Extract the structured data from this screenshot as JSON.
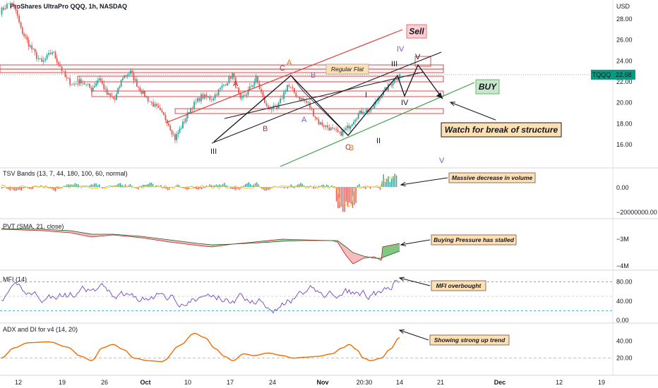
{
  "header": {
    "symbol_title": "ProShares UltraPro QQQ, 1h, NASDAQ",
    "currency": "USD"
  },
  "colors": {
    "up": "#26a69a",
    "down": "#ef5350",
    "channel_upper": "#e53935",
    "channel_lower": "#43a047",
    "zone": "#c62828",
    "mfi_line": "#7e57c2",
    "adx_line": "#ef6c00",
    "price_badge": "#089981",
    "note_bg": "#ffe0b2",
    "buy_bg": "#c8e6c9",
    "sell_bg": "#ffcdd2",
    "wave_red": "#c62828",
    "wave_purple": "#7e57c2",
    "wave_black": "#131722"
  },
  "chart_data": [
    {
      "type": "candlestick",
      "panel": "price",
      "title": "ProShares UltraPro QQQ, 1h, NASDAQ",
      "ylabel": "USD",
      "y_ticks": [
        16.0,
        18.0,
        20.0,
        22.0,
        24.0,
        26.0,
        28.0
      ],
      "ylim": [
        14.2,
        29.8
      ],
      "last_price": 22.68,
      "last_price_label": "TQQQ",
      "x_ticks": [
        "12",
        "19",
        "26",
        "Oct",
        "10",
        "17",
        "24",
        "Nov",
        "20:30",
        "14",
        "21",
        "Dec",
        "12",
        "19"
      ],
      "key_points": [
        {
          "x": 0,
          "y": 28.7
        },
        {
          "x": 0.04,
          "y": 29.6
        },
        {
          "x": 0.06,
          "y": 28.8
        },
        {
          "x": 0.08,
          "y": 27.0
        },
        {
          "x": 0.11,
          "y": 25.6
        },
        {
          "x": 0.14,
          "y": 24.4
        },
        {
          "x": 0.16,
          "y": 23.8
        },
        {
          "x": 0.2,
          "y": 24.9
        },
        {
          "x": 0.23,
          "y": 23.5
        },
        {
          "x": 0.25,
          "y": 22.4
        },
        {
          "x": 0.28,
          "y": 21.7
        },
        {
          "x": 0.31,
          "y": 22.1
        },
        {
          "x": 0.35,
          "y": 21.3
        },
        {
          "x": 0.38,
          "y": 22.4
        },
        {
          "x": 0.41,
          "y": 20.8
        },
        {
          "x": 0.44,
          "y": 20.3
        },
        {
          "x": 0.47,
          "y": 22.5
        },
        {
          "x": 0.5,
          "y": 22.9
        },
        {
          "x": 0.53,
          "y": 21.5
        },
        {
          "x": 0.56,
          "y": 20.5
        },
        {
          "x": 0.6,
          "y": 19.5
        },
        {
          "x": 0.64,
          "y": 18.3
        },
        {
          "x": 0.67,
          "y": 16.6
        },
        {
          "x": 0.7,
          "y": 18.0
        },
        {
          "x": 0.73,
          "y": 19.5
        },
        {
          "x": 0.77,
          "y": 20.6
        },
        {
          "x": 0.81,
          "y": 20.4
        },
        {
          "x": 0.85,
          "y": 21.5
        },
        {
          "x": 0.89,
          "y": 22.7
        },
        {
          "x": 0.92,
          "y": 20.2
        },
        {
          "x": 0.95,
          "y": 21.1
        },
        {
          "x": 0.98,
          "y": 22.3
        },
        {
          "x": 1.02,
          "y": 19.6
        },
        {
          "x": 1.06,
          "y": 19.4
        },
        {
          "x": 1.1,
          "y": 21.7
        },
        {
          "x": 1.14,
          "y": 20.6
        },
        {
          "x": 1.18,
          "y": 19.9
        },
        {
          "x": 1.22,
          "y": 18.1
        },
        {
          "x": 1.26,
          "y": 17.6
        },
        {
          "x": 1.3,
          "y": 17.0
        },
        {
          "x": 1.33,
          "y": 17.6
        },
        {
          "x": 1.36,
          "y": 18.6
        },
        {
          "x": 1.39,
          "y": 19.3
        },
        {
          "x": 1.42,
          "y": 19.2
        },
        {
          "x": 1.45,
          "y": 20.5
        },
        {
          "x": 1.48,
          "y": 21.4
        },
        {
          "x": 1.51,
          "y": 22.2
        },
        {
          "x": 1.53,
          "y": 22.7
        }
      ]
    },
    {
      "type": "bar",
      "panel": "indicator",
      "title": "TSV Bands (13, 7, 44, 180, 100, 60, normal)",
      "y_ticks": [
        "0.00",
        "−20000000.00"
      ]
    },
    {
      "type": "area",
      "panel": "indicator",
      "title": "PVT (SMA, 21, close)",
      "y_ticks": [
        "−3M",
        "−4M"
      ]
    },
    {
      "type": "line",
      "panel": "indicator",
      "title": "MFI (14)",
      "y_ticks": [
        "80.00",
        "40.00",
        "0.00"
      ],
      "ylim": [
        0,
        100
      ],
      "bands": [
        20,
        50,
        80
      ]
    },
    {
      "type": "line",
      "panel": "indicator",
      "title": "ADX and DI for v4 (14, 20)",
      "y_ticks": [
        "40.00",
        "20.00"
      ],
      "ylim": [
        0,
        60
      ],
      "threshold": 20
    }
  ],
  "annotations": {
    "sell": "Sell",
    "buy": "BUY",
    "regular_flat": "Regular Flat",
    "watch": "Watch for break of structure",
    "volume_note": "Massive decrease in volume",
    "pvt_note": "Buying Pressure has stalled",
    "mfi_note": "MFI overbought",
    "adx_note": "Showing strong  up trend"
  },
  "wave_labels": [
    {
      "text": "III",
      "color": "black"
    },
    {
      "text": "A",
      "color": "red"
    },
    {
      "text": "B",
      "color": "red"
    },
    {
      "text": "C",
      "color": "red"
    },
    {
      "text": "A",
      "color": "orange"
    },
    {
      "text": "B",
      "color": "purple"
    },
    {
      "text": "A",
      "color": "purple"
    },
    {
      "text": "C",
      "color": "red"
    },
    {
      "text": "B",
      "color": "orange"
    },
    {
      "text": "II",
      "color": "black"
    },
    {
      "text": "I",
      "color": "black"
    },
    {
      "text": "III",
      "color": "black"
    },
    {
      "text": "IV",
      "color": "purple"
    },
    {
      "text": "V",
      "color": "black"
    },
    {
      "text": "IV",
      "color": "black"
    },
    {
      "text": "V",
      "color": "purple"
    }
  ]
}
